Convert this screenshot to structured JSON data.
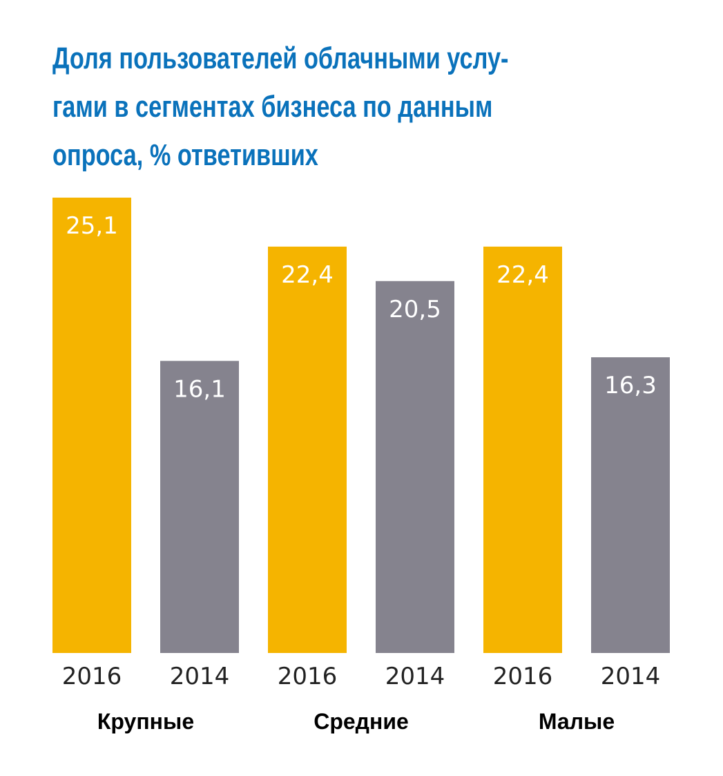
{
  "chart_data": {
    "type": "bar",
    "title_lines": [
      "Доля пользователей облачными услу-",
      "гами в сегментах бизнеса по данным",
      "опроса, % ответивших"
    ],
    "groups": [
      "Крупные",
      "Средние",
      "Малые"
    ],
    "bars": [
      {
        "group": "Крупные",
        "year": "2016",
        "value": 25.1,
        "label": "25,1"
      },
      {
        "group": "Крупные",
        "year": "2014",
        "value": 16.1,
        "label": "16,1"
      },
      {
        "group": "Средние",
        "year": "2016",
        "value": 22.4,
        "label": "22,4"
      },
      {
        "group": "Средние",
        "year": "2014",
        "value": 20.5,
        "label": "20,5"
      },
      {
        "group": "Малые",
        "year": "2016",
        "value": 22.4,
        "label": "22,4"
      },
      {
        "group": "Малые",
        "year": "2014",
        "value": 16.3,
        "label": "16,3"
      }
    ],
    "colors": {
      "2016": "#f5b400",
      "2014": "#85838e",
      "title": "#0a72bb"
    },
    "ylim": [
      0,
      25.1
    ],
    "grid": false,
    "legend": "none"
  }
}
